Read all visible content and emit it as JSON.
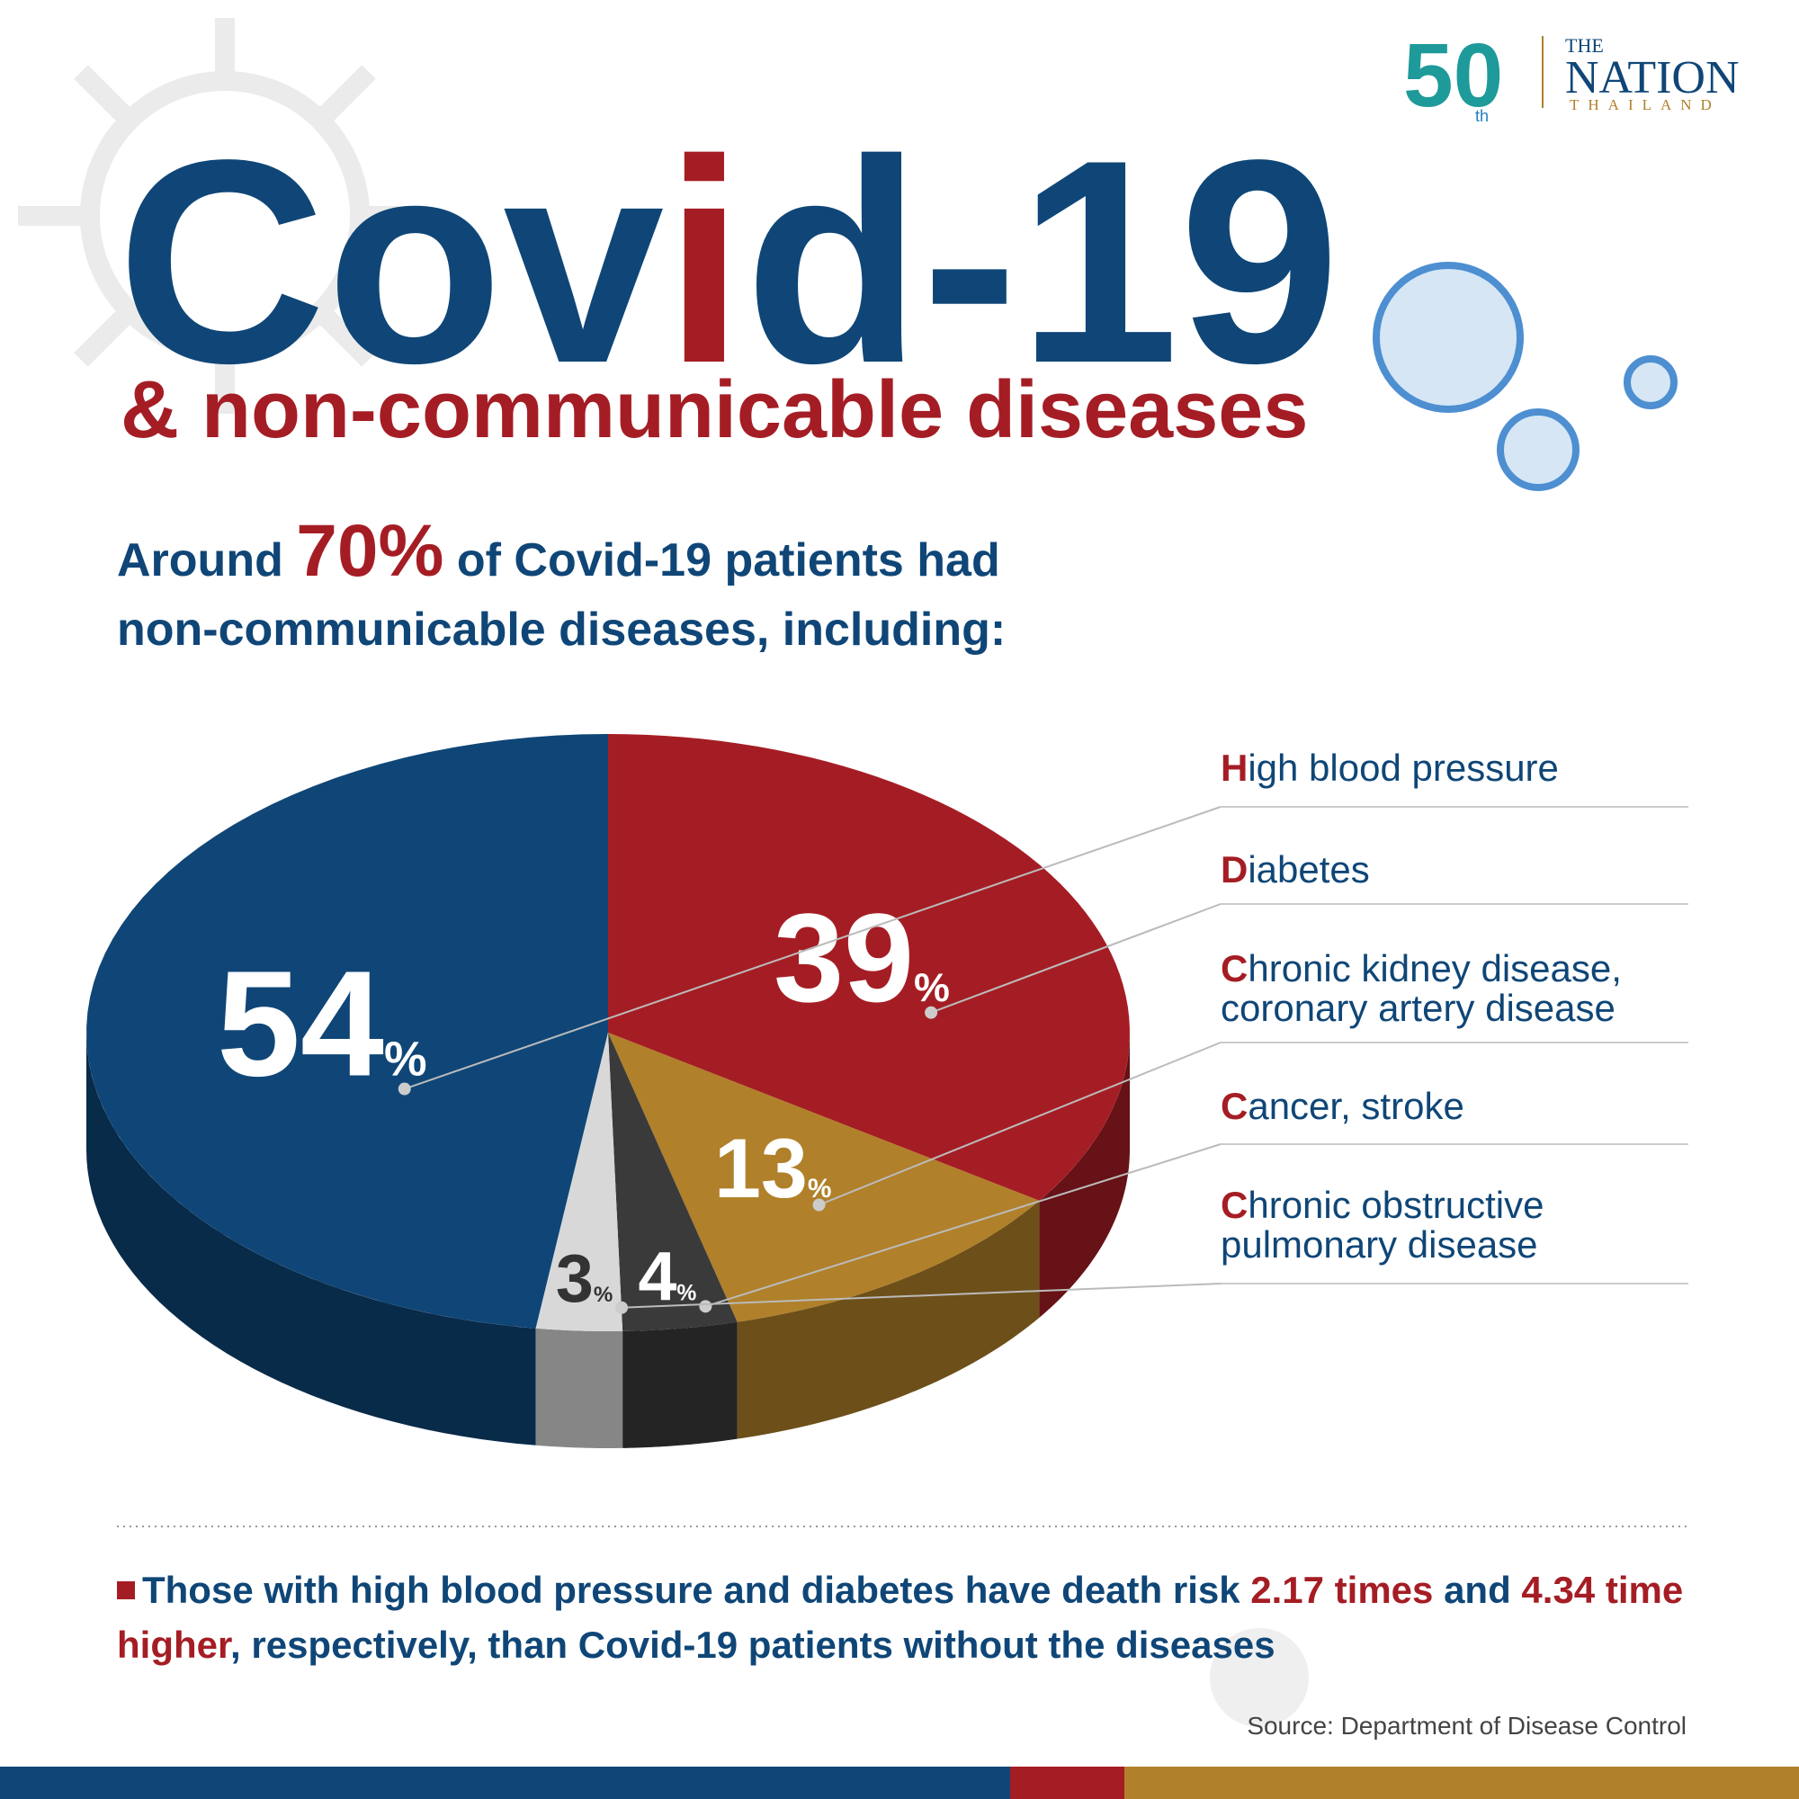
{
  "chart_data": {
    "type": "pie",
    "title": [
      "Cov",
      "i",
      "d-19"
    ],
    "subtitle": [
      "& non-communicable ",
      "diseases"
    ],
    "intro": [
      "Around ",
      "70%",
      " of Covid-19 patients had non-communicable diseases, including:"
    ],
    "categories": [
      "High blood pressure",
      "Diabetes",
      "Chronic kidney disease, coronary artery disease",
      "Cancer, stroke",
      "Chronic obstructive pulmonary disease"
    ],
    "values": [
      54,
      39,
      13,
      4,
      3
    ],
    "value_labels": [
      "54%",
      "39%",
      "13%",
      "4%",
      "3%"
    ],
    "colors": [
      "#0f4677",
      "#a51d24",
      "#b0802a",
      "#3a3a3a",
      "#d8d8d8"
    ],
    "note": [
      "Those with high blood pressure and diabetes have death risk ",
      "2.17 times",
      " and ",
      "4.34 time higher",
      ", respectively, than Covid-19 patients without the diseases"
    ],
    "source": "Source: Department of Disease Control"
  },
  "logo": {
    "anniversary": "50",
    "suffix": "th",
    "the": "THE",
    "name": "NATION",
    "region": "THAILAND"
  }
}
